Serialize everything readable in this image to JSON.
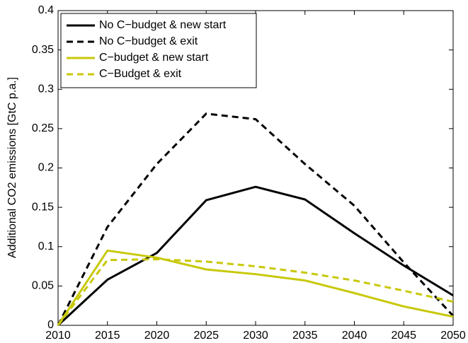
{
  "chart_data": {
    "type": "line",
    "y_label": "Additional CO2 emissions [GtC p.a.]",
    "x": [
      2010,
      2015,
      2020,
      2025,
      2030,
      2035,
      2040,
      2045,
      2050
    ],
    "series": [
      {
        "name": "No C−budget & new start",
        "color": "#000000",
        "dash": false,
        "values": [
          0,
          0.058,
          0.092,
          0.159,
          0.176,
          0.16,
          0.117,
          0.076,
          0.038
        ]
      },
      {
        "name": "No C−budget & exit",
        "color": "#000000",
        "dash": true,
        "values": [
          0,
          0.125,
          0.205,
          0.269,
          0.262,
          0.205,
          0.152,
          0.08,
          0.012
        ]
      },
      {
        "name": "C−budget & new start",
        "color": "#c8c80a",
        "dash": false,
        "values": [
          0,
          0.095,
          0.086,
          0.071,
          0.065,
          0.057,
          0.041,
          0.024,
          0.011
        ]
      },
      {
        "name": "C−Budget & exit",
        "color": "#c8c80a",
        "dash": true,
        "values": [
          0,
          0.083,
          0.084,
          0.081,
          0.075,
          0.067,
          0.057,
          0.044,
          0.03
        ]
      }
    ],
    "xlim": [
      2010,
      2050
    ],
    "xticks": [
      2010,
      2015,
      2020,
      2025,
      2030,
      2035,
      2040,
      2045,
      2050
    ],
    "ylim": [
      0,
      0.4
    ],
    "yticks": [
      0,
      0.05,
      0.1,
      0.15,
      0.2,
      0.25,
      0.3,
      0.35,
      0.4
    ],
    "legend": "upper-left"
  }
}
